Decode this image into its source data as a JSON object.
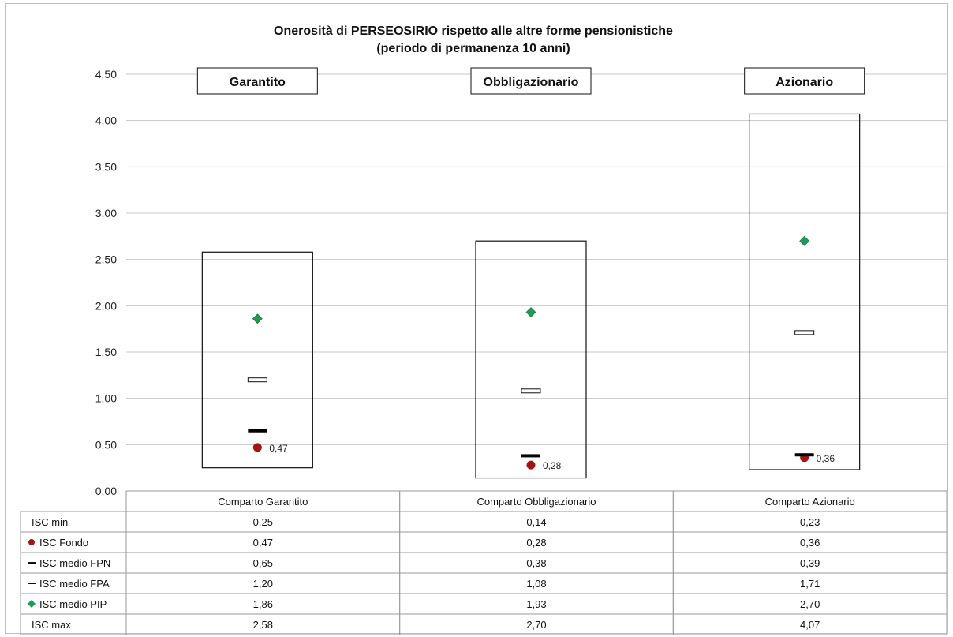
{
  "chart_data": {
    "type": "range",
    "title_lines": [
      "Onerosità di PERSEOSIRIO rispetto alle altre forme pensionistiche",
      "(periodo di permanenza 10 anni)"
    ],
    "ylim": [
      0,
      4.5
    ],
    "y_ticks": [
      "0,00",
      "0,50",
      "1,00",
      "1,50",
      "2,00",
      "2,50",
      "3,00",
      "3,50",
      "4,00",
      "4,50"
    ],
    "panel_labels": [
      "Garantito",
      "Obbligazionario",
      "Azionario"
    ],
    "categories": [
      "Comparto Garantito",
      "Comparto Obbligazionario",
      "Comparto Azionario"
    ],
    "series": [
      {
        "key": "min",
        "name": "ISC min",
        "marker": "none",
        "values": [
          0.25,
          0.14,
          0.23
        ],
        "display": [
          "0,25",
          "0,14",
          "0,23"
        ]
      },
      {
        "key": "fondo",
        "name": "ISC Fondo",
        "marker": "circle",
        "values": [
          0.47,
          0.28,
          0.36
        ],
        "display": [
          "0,47",
          "0,28",
          "0,36"
        ]
      },
      {
        "key": "fpn",
        "name": "ISC medio FPN",
        "marker": "dash-black",
        "values": [
          0.65,
          0.38,
          0.39
        ],
        "display": [
          "0,65",
          "0,38",
          "0,39"
        ]
      },
      {
        "key": "fpa",
        "name": "ISC medio FPA",
        "marker": "dash-hollow",
        "values": [
          1.2,
          1.08,
          1.71
        ],
        "display": [
          "1,20",
          "1,08",
          "1,71"
        ]
      },
      {
        "key": "pip",
        "name": "ISC medio PIP",
        "marker": "diamond",
        "values": [
          1.86,
          1.93,
          2.7
        ],
        "display": [
          "1,86",
          "1,93",
          "2,70"
        ]
      },
      {
        "key": "max",
        "name": "ISC max",
        "marker": "none",
        "values": [
          2.58,
          2.7,
          4.07
        ],
        "display": [
          "2,58",
          "2,70",
          "4,07"
        ]
      }
    ],
    "data_labels": [
      "0,47",
      "0,28",
      "0,36"
    ],
    "colors": {
      "fondo": "#a31515",
      "pip": "#1e9a55",
      "grid": "#c8c8c8",
      "marker_dark": "#000000"
    },
    "grid": true
  }
}
